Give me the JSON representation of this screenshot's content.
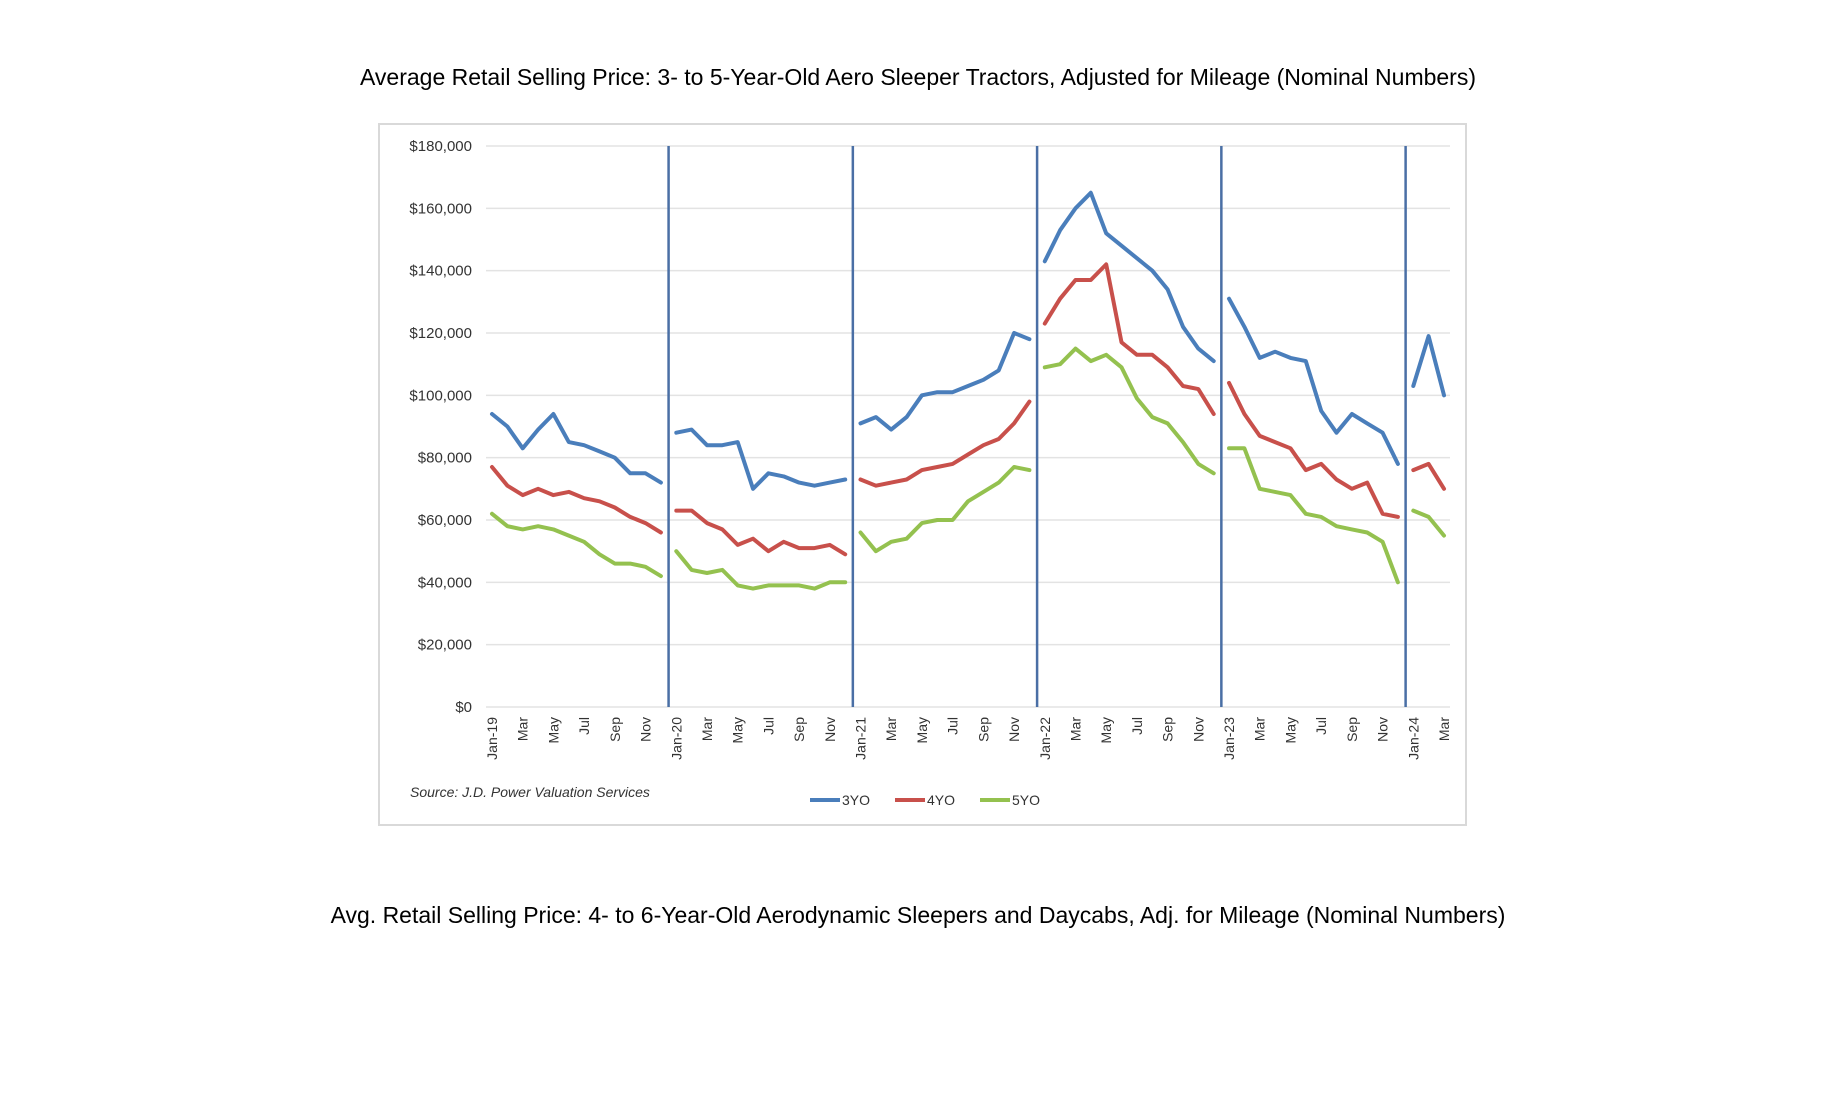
{
  "title_top": "Average Retail Selling Price: 3- to 5-Year-Old Aero Sleeper Tractors, Adjusted for Mileage (Nominal Numbers)",
  "title_bottom": "Avg. Retail Selling Price: 4- to 6-Year-Old Aerodynamic Sleepers and Daycabs, Adj. for Mileage (Nominal Numbers)",
  "colors": {
    "3YO": "#4a7ebb",
    "4YO": "#c8504b",
    "5YO": "#94c14f",
    "divider": "#4a6fa5",
    "grid": "#e3e3e3"
  },
  "chart_data": {
    "type": "line",
    "title": "",
    "source": "Source: J.D. Power Valuation Services",
    "ylim": [
      0,
      180000
    ],
    "y_ticks": [
      "$0",
      "$20,000",
      "$40,000",
      "$60,000",
      "$80,000",
      "$100,000",
      "$120,000",
      "$140,000",
      "$160,000",
      "$180,000"
    ],
    "y_tick_values": [
      0,
      20000,
      40000,
      60000,
      80000,
      100000,
      120000,
      140000,
      160000,
      180000
    ],
    "grid": true,
    "legend_position": "bottom",
    "x_tick_labels": [
      "Jan-19",
      "Mar",
      "May",
      "Jul",
      "Sep",
      "Nov",
      "Jan-20",
      "Mar",
      "May",
      "Jul",
      "Sep",
      "Nov",
      "Jan-21",
      "Mar",
      "May",
      "Jul",
      "Sep",
      "Nov",
      "Jan-22",
      "Mar",
      "May",
      "Jul",
      "Sep",
      "Nov",
      "Jan-23",
      "Mar",
      "May",
      "Jul",
      "Sep",
      "Nov",
      "Jan-24",
      "Mar"
    ],
    "year_dividers": [
      "Jan-20",
      "Jan-21",
      "Jan-22",
      "Jan-23",
      "Jan-24"
    ],
    "x": [
      "Jan-19",
      "Feb-19",
      "Mar-19",
      "Apr-19",
      "May-19",
      "Jun-19",
      "Jul-19",
      "Aug-19",
      "Sep-19",
      "Oct-19",
      "Nov-19",
      "Dec-19",
      "Jan-20",
      "Feb-20",
      "Mar-20",
      "Apr-20",
      "May-20",
      "Jun-20",
      "Jul-20",
      "Aug-20",
      "Sep-20",
      "Oct-20",
      "Nov-20",
      "Dec-20",
      "Jan-21",
      "Feb-21",
      "Mar-21",
      "Apr-21",
      "May-21",
      "Jun-21",
      "Jul-21",
      "Aug-21",
      "Sep-21",
      "Oct-21",
      "Nov-21",
      "Dec-21",
      "Jan-22",
      "Feb-22",
      "Mar-22",
      "Apr-22",
      "May-22",
      "Jun-22",
      "Jul-22",
      "Aug-22",
      "Sep-22",
      "Oct-22",
      "Nov-22",
      "Dec-22",
      "Jan-23",
      "Feb-23",
      "Mar-23",
      "Apr-23",
      "May-23",
      "Jun-23",
      "Jul-23",
      "Aug-23",
      "Sep-23",
      "Oct-23",
      "Nov-23",
      "Dec-23",
      "Jan-24",
      "Feb-24",
      "Mar-24"
    ],
    "series": [
      {
        "name": "3YO",
        "values": [
          94000,
          90000,
          83000,
          89000,
          94000,
          85000,
          84000,
          82000,
          80000,
          75000,
          75000,
          72000,
          88000,
          89000,
          84000,
          84000,
          85000,
          70000,
          75000,
          74000,
          72000,
          71000,
          72000,
          73000,
          91000,
          93000,
          89000,
          93000,
          100000,
          101000,
          101000,
          103000,
          105000,
          108000,
          120000,
          118000,
          143000,
          153000,
          160000,
          165000,
          152000,
          148000,
          144000,
          140000,
          134000,
          122000,
          115000,
          111000,
          131000,
          122000,
          112000,
          114000,
          112000,
          111000,
          95000,
          88000,
          94000,
          91000,
          88000,
          78000,
          103000,
          119000,
          100000
        ]
      },
      {
        "name": "4YO",
        "values": [
          77000,
          71000,
          68000,
          70000,
          68000,
          69000,
          67000,
          66000,
          64000,
          61000,
          59000,
          56000,
          63000,
          63000,
          59000,
          57000,
          52000,
          54000,
          50000,
          53000,
          51000,
          51000,
          52000,
          49000,
          73000,
          71000,
          72000,
          73000,
          76000,
          77000,
          78000,
          81000,
          84000,
          86000,
          91000,
          98000,
          123000,
          131000,
          137000,
          137000,
          142000,
          117000,
          113000,
          113000,
          109000,
          103000,
          102000,
          94000,
          104000,
          94000,
          87000,
          85000,
          83000,
          76000,
          78000,
          73000,
          70000,
          72000,
          62000,
          61000,
          76000,
          78000,
          70000
        ]
      },
      {
        "name": "5YO",
        "values": [
          62000,
          58000,
          57000,
          58000,
          57000,
          55000,
          53000,
          49000,
          46000,
          46000,
          45000,
          42000,
          50000,
          44000,
          43000,
          44000,
          39000,
          38000,
          39000,
          39000,
          39000,
          38000,
          40000,
          40000,
          56000,
          50000,
          53000,
          54000,
          59000,
          60000,
          60000,
          66000,
          69000,
          72000,
          77000,
          76000,
          109000,
          110000,
          115000,
          111000,
          113000,
          109000,
          99000,
          93000,
          91000,
          85000,
          78000,
          75000,
          83000,
          83000,
          70000,
          69000,
          68000,
          62000,
          61000,
          58000,
          57000,
          56000,
          53000,
          40000,
          63000,
          61000,
          55000
        ]
      }
    ]
  }
}
